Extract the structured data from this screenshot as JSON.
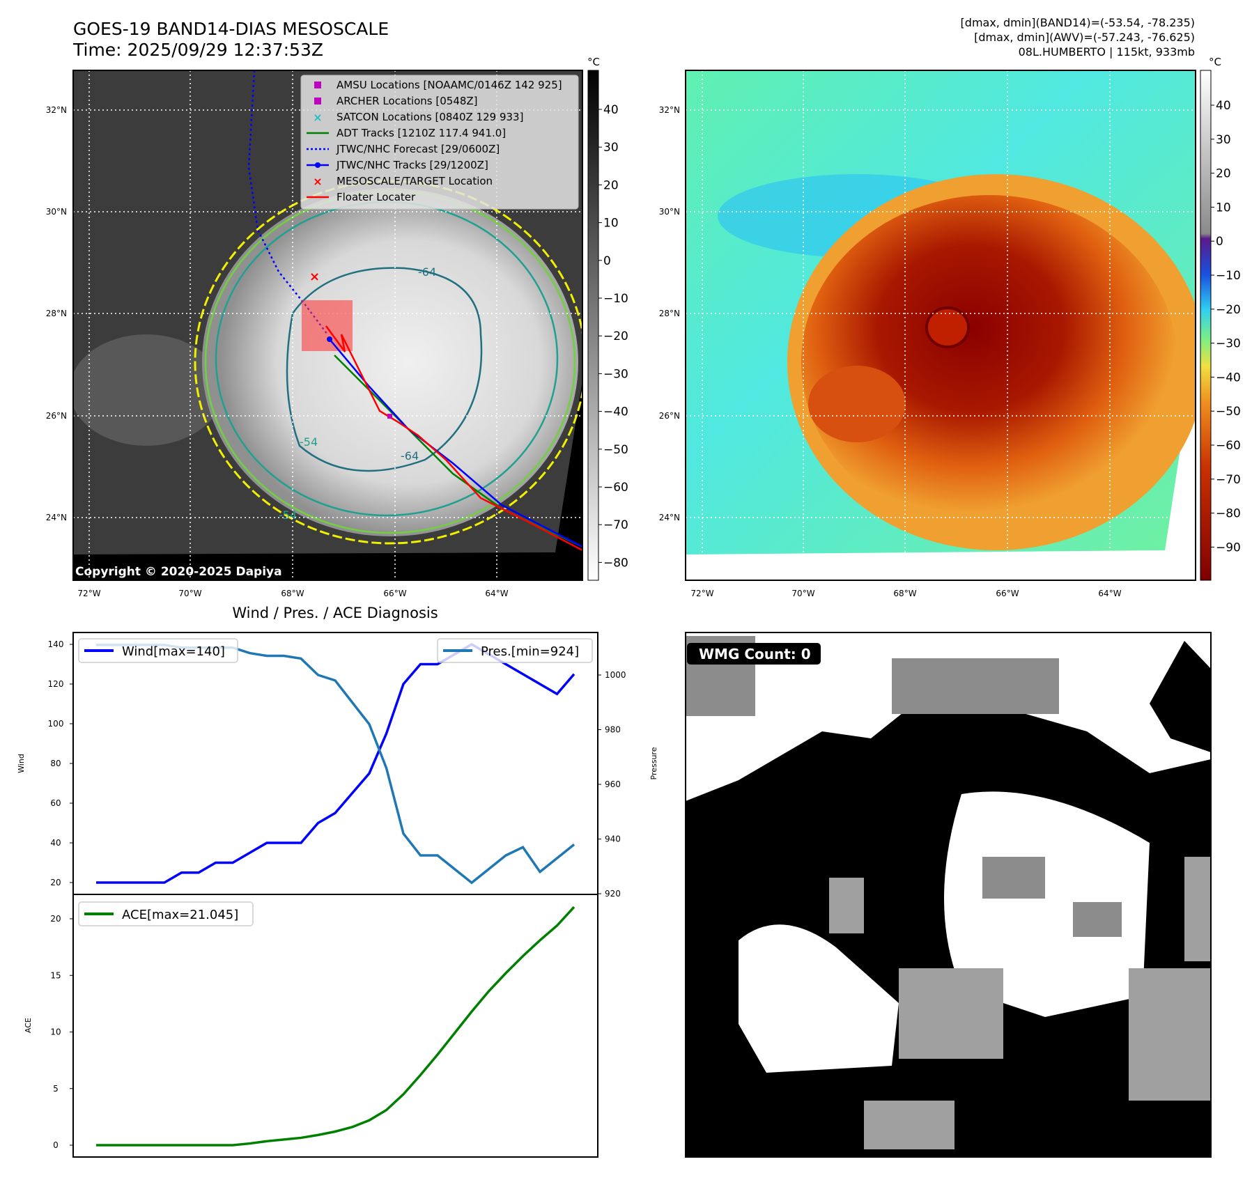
{
  "header": {
    "title": "GOES-19 BAND14-DIAS MESOSCALE",
    "time": "Time: 2025/09/29 12:37:53Z",
    "info_lines": [
      "[dmax, dmin](BAND14)=(-53.54, -78.235)",
      "[dmax, dmin](AWV)=(-57.243, -76.625)",
      "08L.HUMBERTO | 115kt, 933mb"
    ]
  },
  "maps": {
    "lat_labels": [
      "32°N",
      "30°N",
      "28°N",
      "26°N",
      "24°N"
    ],
    "lon_labels": [
      "72°W",
      "70°W",
      "68°W",
      "66°W",
      "64°W"
    ],
    "copyright": "Copyright © 2020-2025 Dapiya",
    "contour_labels": [
      "-64",
      "-54",
      "-64",
      "-54"
    ],
    "colorbar_unit": "°C",
    "colorbar1_ticks": [
      "40",
      "30",
      "20",
      "10",
      "0",
      "−10",
      "−20",
      "−30",
      "−40",
      "−50",
      "−60",
      "−70",
      "−80"
    ],
    "colorbar2_ticks": [
      "40",
      "30",
      "20",
      "10",
      "0",
      "−10",
      "−20",
      "−30",
      "−40",
      "−50",
      "−60",
      "−70",
      "−80",
      "−90"
    ],
    "legend": [
      {
        "label": "AMSU Locations [NOAAMC/0146Z 142 925]",
        "marker": "square",
        "color": "#c000c0"
      },
      {
        "label": "ARCHER Locations [0548Z]",
        "marker": "square",
        "color": "#c000c0"
      },
      {
        "label": "SATCON Locations [0840Z 129 933]",
        "marker": "x",
        "color": "#20c0c0"
      },
      {
        "label": "ADT Tracks [1210Z 117.4 941.0]",
        "marker": "line",
        "color": "#008000"
      },
      {
        "label": "JTWC/NHC Forecast [29/0600Z]",
        "marker": "dotted",
        "color": "#0000ff"
      },
      {
        "label": "JTWC/NHC Tracks [29/1200Z]",
        "marker": "line-dot",
        "color": "#0000ff"
      },
      {
        "label": "MESOSCALE/TARGET Location",
        "marker": "x",
        "color": "#ff0000"
      },
      {
        "label": "Floater Locater",
        "marker": "line",
        "color": "#ff0000"
      }
    ]
  },
  "wmg": {
    "label": "WMG Count: 0"
  },
  "chart_data": [
    {
      "type": "line",
      "title": "Wind / Pres. / ACE Diagnosis",
      "ylabel": "Wind",
      "y2label": "Pressure",
      "ylim": [
        16,
        144
      ],
      "y2lim": [
        920,
        1012
      ],
      "yticks": [
        20,
        40,
        60,
        80,
        100,
        120,
        140
      ],
      "y2ticks": [
        920,
        940,
        960,
        980,
        1000
      ],
      "series": [
        {
          "name": "Wind[max=140]",
          "axis": "left",
          "color": "#0000ff",
          "values": [
            20,
            20,
            20,
            20,
            20,
            25,
            25,
            30,
            30,
            35,
            40,
            40,
            40,
            50,
            55,
            65,
            75,
            95,
            120,
            130,
            130,
            135,
            140,
            135,
            130,
            125,
            120,
            115,
            125
          ]
        },
        {
          "name": "Pres.[min=924]",
          "axis": "right",
          "color": "#1f77b4",
          "values": [
            1011,
            1011,
            1011,
            1011,
            1011,
            1010,
            1010,
            1010,
            1010,
            1008,
            1007,
            1007,
            1006,
            1000,
            998,
            990,
            982,
            966,
            942,
            934,
            934,
            929,
            924,
            929,
            934,
            937,
            928,
            933,
            938
          ]
        }
      ]
    },
    {
      "type": "line",
      "ylabel": "ACE",
      "ylim": [
        -1,
        22
      ],
      "yticks": [
        0,
        5,
        10,
        15,
        20
      ],
      "series": [
        {
          "name": "ACE[max=21.045]",
          "color": "#008000",
          "values": [
            0,
            0,
            0,
            0,
            0,
            0,
            0,
            0,
            0,
            0.15,
            0.35,
            0.5,
            0.65,
            0.9,
            1.2,
            1.6,
            2.2,
            3.1,
            4.5,
            6.2,
            8.0,
            9.9,
            11.8,
            13.6,
            15.2,
            16.7,
            18.1,
            19.4,
            21.045
          ]
        }
      ]
    }
  ]
}
